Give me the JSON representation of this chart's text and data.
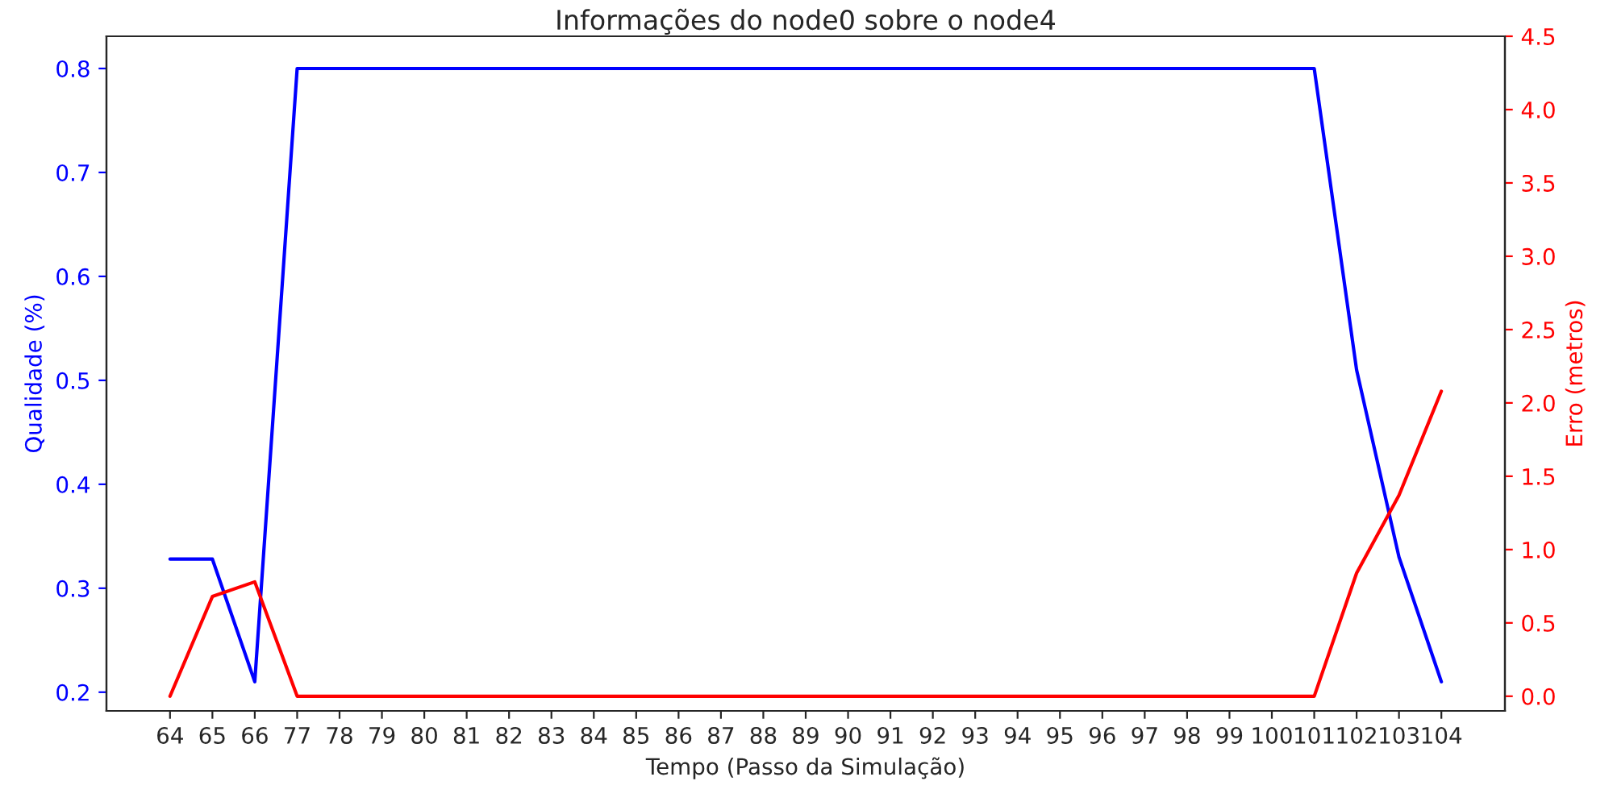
{
  "chart_data": {
    "type": "line",
    "title": "Informações do node0 sobre o node4",
    "xlabel": "Tempo (Passo da Simulação)",
    "ylabel": "Qualidade (%)",
    "y2label": "Erro (metros)",
    "categories": [
      "64",
      "65",
      "66",
      "77",
      "78",
      "79",
      "80",
      "81",
      "82",
      "83",
      "84",
      "85",
      "86",
      "87",
      "88",
      "89",
      "90",
      "91",
      "92",
      "93",
      "94",
      "95",
      "96",
      "97",
      "98",
      "99",
      "100",
      "101",
      "102",
      "103",
      "104"
    ],
    "series": [
      {
        "color": "#0000ff",
        "values": [
          0.328,
          0.328,
          0.21,
          0.8,
          0.8,
          0.8,
          0.8,
          0.8,
          0.8,
          0.8,
          0.8,
          0.8,
          0.8,
          0.8,
          0.8,
          0.8,
          0.8,
          0.8,
          0.8,
          0.8,
          0.8,
          0.8,
          0.8,
          0.8,
          0.8,
          0.8,
          0.8,
          0.8,
          0.51,
          0.33,
          0.21
        ]
      },
      {
        "color": "#ff0000",
        "axis": "y2",
        "values": [
          0.0,
          0.68,
          0.78,
          0.0,
          0.0,
          0.0,
          0.0,
          0.0,
          0.0,
          0.0,
          0.0,
          0.0,
          0.0,
          0.0,
          0.0,
          0.0,
          0.0,
          0.0,
          0.0,
          0.0,
          0.0,
          0.0,
          0.0,
          0.0,
          0.0,
          0.0,
          0.0,
          0.0,
          0.84,
          1.37,
          2.08
        ]
      }
    ],
    "ylim": [
      0.182,
      0.831
    ],
    "yticks": [
      0.2,
      0.3,
      0.4,
      0.5,
      0.6,
      0.7,
      0.8
    ],
    "y2lim": [
      -0.1,
      4.5
    ],
    "y2ticks": [
      {
        "value": 0,
        "label": "0.0"
      },
      0.5,
      {
        "value": 1,
        "label": "1.0"
      },
      1.5,
      {
        "value": 2,
        "label": "2.0"
      },
      2.5,
      {
        "value": 3,
        "label": "3.0"
      },
      3.5,
      {
        "value": 4,
        "label": "4.0"
      },
      4.5
    ],
    "grid": false
  }
}
